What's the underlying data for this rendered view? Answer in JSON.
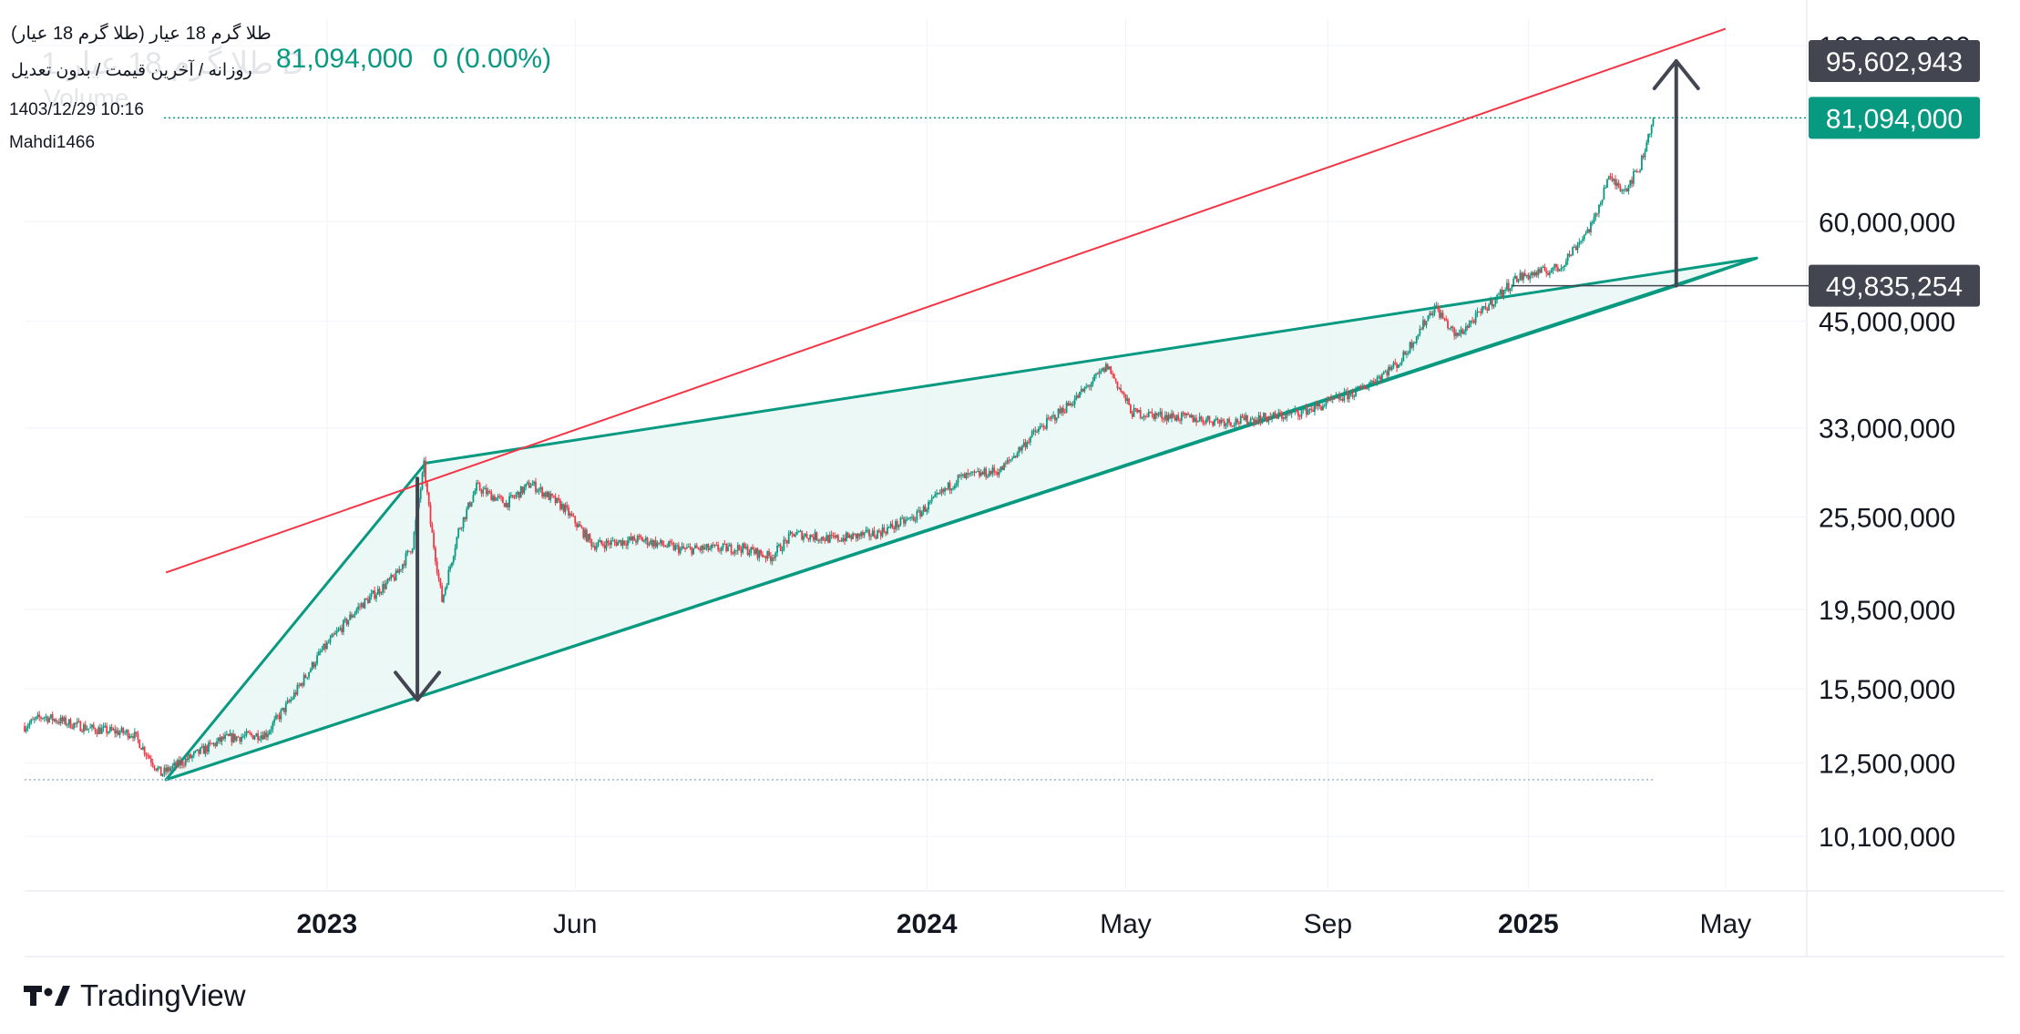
{
  "header": {
    "title": "طلا گرم 18 عیار (طلا گرم 18 عیار)",
    "subtitle": "روزانه / آخرین قیمت / بدون تعدیل",
    "datetime": "1403/12/29 10:16",
    "author": "Mahdi1466",
    "last_price": "81,094,000",
    "change": "0 (0.00%)",
    "ghost_symbol": "طلا گرم 18 عیار 1 D",
    "ghost_volume": "Volume"
  },
  "brand": {
    "name": "TradingView",
    "icon": "tradingview-logo-icon"
  },
  "colors": {
    "up": "#089981",
    "down": "#f23645",
    "pattern": "#089981",
    "pattern_fill": "#e6f5f1",
    "channel_line": "#f23645",
    "measure_arrow": "#434651",
    "price_label": "#089981",
    "measure_label": "#434651"
  },
  "chart_data": {
    "type": "candlestick",
    "scale": "log",
    "y_ticks": [
      "100,000,000",
      "60,000,000",
      "45,000,000",
      "33,000,000",
      "25,500,000",
      "19,500,000",
      "15,500,000",
      "12,500,000",
      "10,100,000"
    ],
    "y_tick_values": [
      100000000,
      60000000,
      45000000,
      33000000,
      25500000,
      19500000,
      15500000,
      12500000,
      10100000
    ],
    "x_ticks": [
      {
        "label": "2023",
        "date": "2023-01-01",
        "bold": true
      },
      {
        "label": "Jun",
        "date": "2023-06-01",
        "bold": false
      },
      {
        "label": "2024",
        "date": "2024-01-01",
        "bold": true
      },
      {
        "label": "May",
        "date": "2024-05-01",
        "bold": false
      },
      {
        "label": "Sep",
        "date": "2024-09-01",
        "bold": false
      },
      {
        "label": "2025",
        "date": "2025-01-01",
        "bold": true
      },
      {
        "label": "May",
        "date": "2025-05-01",
        "bold": false
      }
    ],
    "price_labels": [
      {
        "text": "95,602,943",
        "value": 95602943,
        "kind": "measure"
      },
      {
        "text": "81,094,000",
        "value": 81094000,
        "kind": "last"
      },
      {
        "text": "49,835,254",
        "value": 49835254,
        "kind": "measure"
      }
    ],
    "price_path": [
      {
        "date": "2022-07-01",
        "price": 13900000
      },
      {
        "date": "2022-07-12",
        "price": 14300000
      },
      {
        "date": "2022-08-10",
        "price": 13800000
      },
      {
        "date": "2022-09-05",
        "price": 13600000
      },
      {
        "date": "2022-09-22",
        "price": 12100000
      },
      {
        "date": "2022-10-10",
        "price": 12700000
      },
      {
        "date": "2022-10-30",
        "price": 13400000
      },
      {
        "date": "2022-11-25",
        "price": 13600000
      },
      {
        "date": "2022-12-10",
        "price": 15000000
      },
      {
        "date": "2022-12-28",
        "price": 17200000
      },
      {
        "date": "2023-01-20",
        "price": 19600000
      },
      {
        "date": "2023-02-12",
        "price": 21500000
      },
      {
        "date": "2023-02-22",
        "price": 23500000
      },
      {
        "date": "2023-03-01",
        "price": 29600000
      },
      {
        "date": "2023-03-05",
        "price": 25000000
      },
      {
        "date": "2023-03-12",
        "price": 20000000
      },
      {
        "date": "2023-03-22",
        "price": 24500000
      },
      {
        "date": "2023-04-02",
        "price": 27800000
      },
      {
        "date": "2023-04-20",
        "price": 26500000
      },
      {
        "date": "2023-05-05",
        "price": 28100000
      },
      {
        "date": "2023-05-25",
        "price": 26200000
      },
      {
        "date": "2023-06-12",
        "price": 23500000
      },
      {
        "date": "2023-07-10",
        "price": 23900000
      },
      {
        "date": "2023-08-05",
        "price": 23200000
      },
      {
        "date": "2023-09-10",
        "price": 23300000
      },
      {
        "date": "2023-09-28",
        "price": 22700000
      },
      {
        "date": "2023-10-12",
        "price": 24300000
      },
      {
        "date": "2023-11-05",
        "price": 23900000
      },
      {
        "date": "2023-12-01",
        "price": 24300000
      },
      {
        "date": "2023-12-25",
        "price": 25500000
      },
      {
        "date": "2024-01-20",
        "price": 28500000
      },
      {
        "date": "2024-02-15",
        "price": 29200000
      },
      {
        "date": "2024-03-05",
        "price": 32300000
      },
      {
        "date": "2024-04-01",
        "price": 36000000
      },
      {
        "date": "2024-04-20",
        "price": 39500000
      },
      {
        "date": "2024-05-05",
        "price": 34500000
      },
      {
        "date": "2024-06-05",
        "price": 34000000
      },
      {
        "date": "2024-07-05",
        "price": 33600000
      },
      {
        "date": "2024-08-05",
        "price": 34200000
      },
      {
        "date": "2024-08-25",
        "price": 35000000
      },
      {
        "date": "2024-09-20",
        "price": 36800000
      },
      {
        "date": "2024-10-15",
        "price": 40000000
      },
      {
        "date": "2024-11-05",
        "price": 47000000
      },
      {
        "date": "2024-11-18",
        "price": 43000000
      },
      {
        "date": "2024-12-05",
        "price": 46500000
      },
      {
        "date": "2024-12-25",
        "price": 51000000
      },
      {
        "date": "2025-01-20",
        "price": 52500000
      },
      {
        "date": "2025-02-10",
        "price": 60000000
      },
      {
        "date": "2025-02-18",
        "price": 68000000
      },
      {
        "date": "2025-03-01",
        "price": 66000000
      },
      {
        "date": "2025-03-10",
        "price": 70500000
      },
      {
        "date": "2025-03-18",
        "price": 81094000
      }
    ],
    "drawings": {
      "pattern_polygon": [
        {
          "date": "2022-09-25",
          "price": 11900000
        },
        {
          "date": "2023-03-02",
          "price": 29800000
        },
        {
          "date": "2025-05-20",
          "price": 54000000
        },
        {
          "date": "2025-04-01",
          "price": 49835254
        }
      ],
      "pattern_lower_line": [
        {
          "date": "2022-09-25",
          "price": 11900000
        },
        {
          "date": "2025-05-20",
          "price": 54000000
        }
      ],
      "channel_line": [
        {
          "date": "2022-09-25",
          "price": 21700000
        },
        {
          "date": "2025-05-01",
          "price": 105000000
        }
      ],
      "measure_arrows": [
        {
          "from": {
            "date": "2023-02-25",
            "price": 28500000
          },
          "to": {
            "date": "2023-02-25",
            "price": 15000000
          }
        },
        {
          "from": {
            "date": "2025-04-01",
            "price": 49835254
          },
          "to": {
            "date": "2025-04-01",
            "price": 95602943
          }
        }
      ],
      "support_level": {
        "price": 11900000,
        "from": "2022-07-01",
        "to": "2025-03-18"
      },
      "last_price_level": {
        "price": 81094000
      }
    }
  }
}
